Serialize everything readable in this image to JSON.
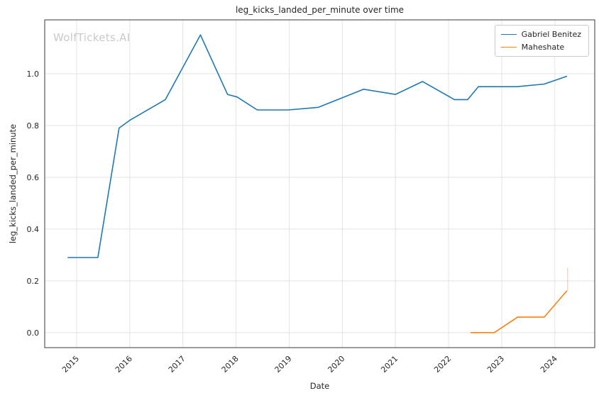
{
  "watermark": "WolfTickets.AI",
  "chart_data": {
    "type": "line",
    "title": "leg_kicks_landed_per_minute over time",
    "xlabel": "Date",
    "ylabel": "leg_kicks_landed_per_minute",
    "xlim": [
      2014.4,
      2024.75
    ],
    "ylim": [
      -0.058,
      1.208
    ],
    "x_ticks": [
      2015,
      2016,
      2017,
      2018,
      2019,
      2020,
      2021,
      2022,
      2023,
      2024
    ],
    "y_ticks": [
      0.0,
      0.2,
      0.4,
      0.6,
      0.8,
      1.0
    ],
    "grid": true,
    "grid_color": "#e3e3e3",
    "spine_color": "#3a3a3a",
    "legend_position": "upper right",
    "series": [
      {
        "name": "Gabriel Benitez",
        "color": "#1f77b4",
        "x": [
          2014.84,
          2015.4,
          2015.8,
          2016.0,
          2016.67,
          2017.33,
          2017.84,
          2018.02,
          2018.4,
          2018.98,
          2019.55,
          2020.4,
          2021.0,
          2021.51,
          2022.11,
          2022.36,
          2022.56,
          2023.28,
          2023.8,
          2024.22
        ],
        "y": [
          0.29,
          0.29,
          0.79,
          0.82,
          0.9,
          1.15,
          0.92,
          0.91,
          0.86,
          0.86,
          0.87,
          0.94,
          0.92,
          0.97,
          0.9,
          0.9,
          0.95,
          0.95,
          0.96,
          0.99
        ]
      },
      {
        "name": "Maheshate",
        "color": "#ff7f0e",
        "x": [
          2022.42,
          2022.86,
          2023.3,
          2023.8,
          2024.22
        ],
        "y": [
          0.0,
          0.0,
          0.06,
          0.06,
          0.16
        ]
      }
    ],
    "annotations": [
      {
        "name": "maheshate-end-spike",
        "x": 2024.24,
        "y0": 0.16,
        "y1": 0.25,
        "color": "#ff7f0e",
        "opacity": 0.5
      }
    ]
  }
}
